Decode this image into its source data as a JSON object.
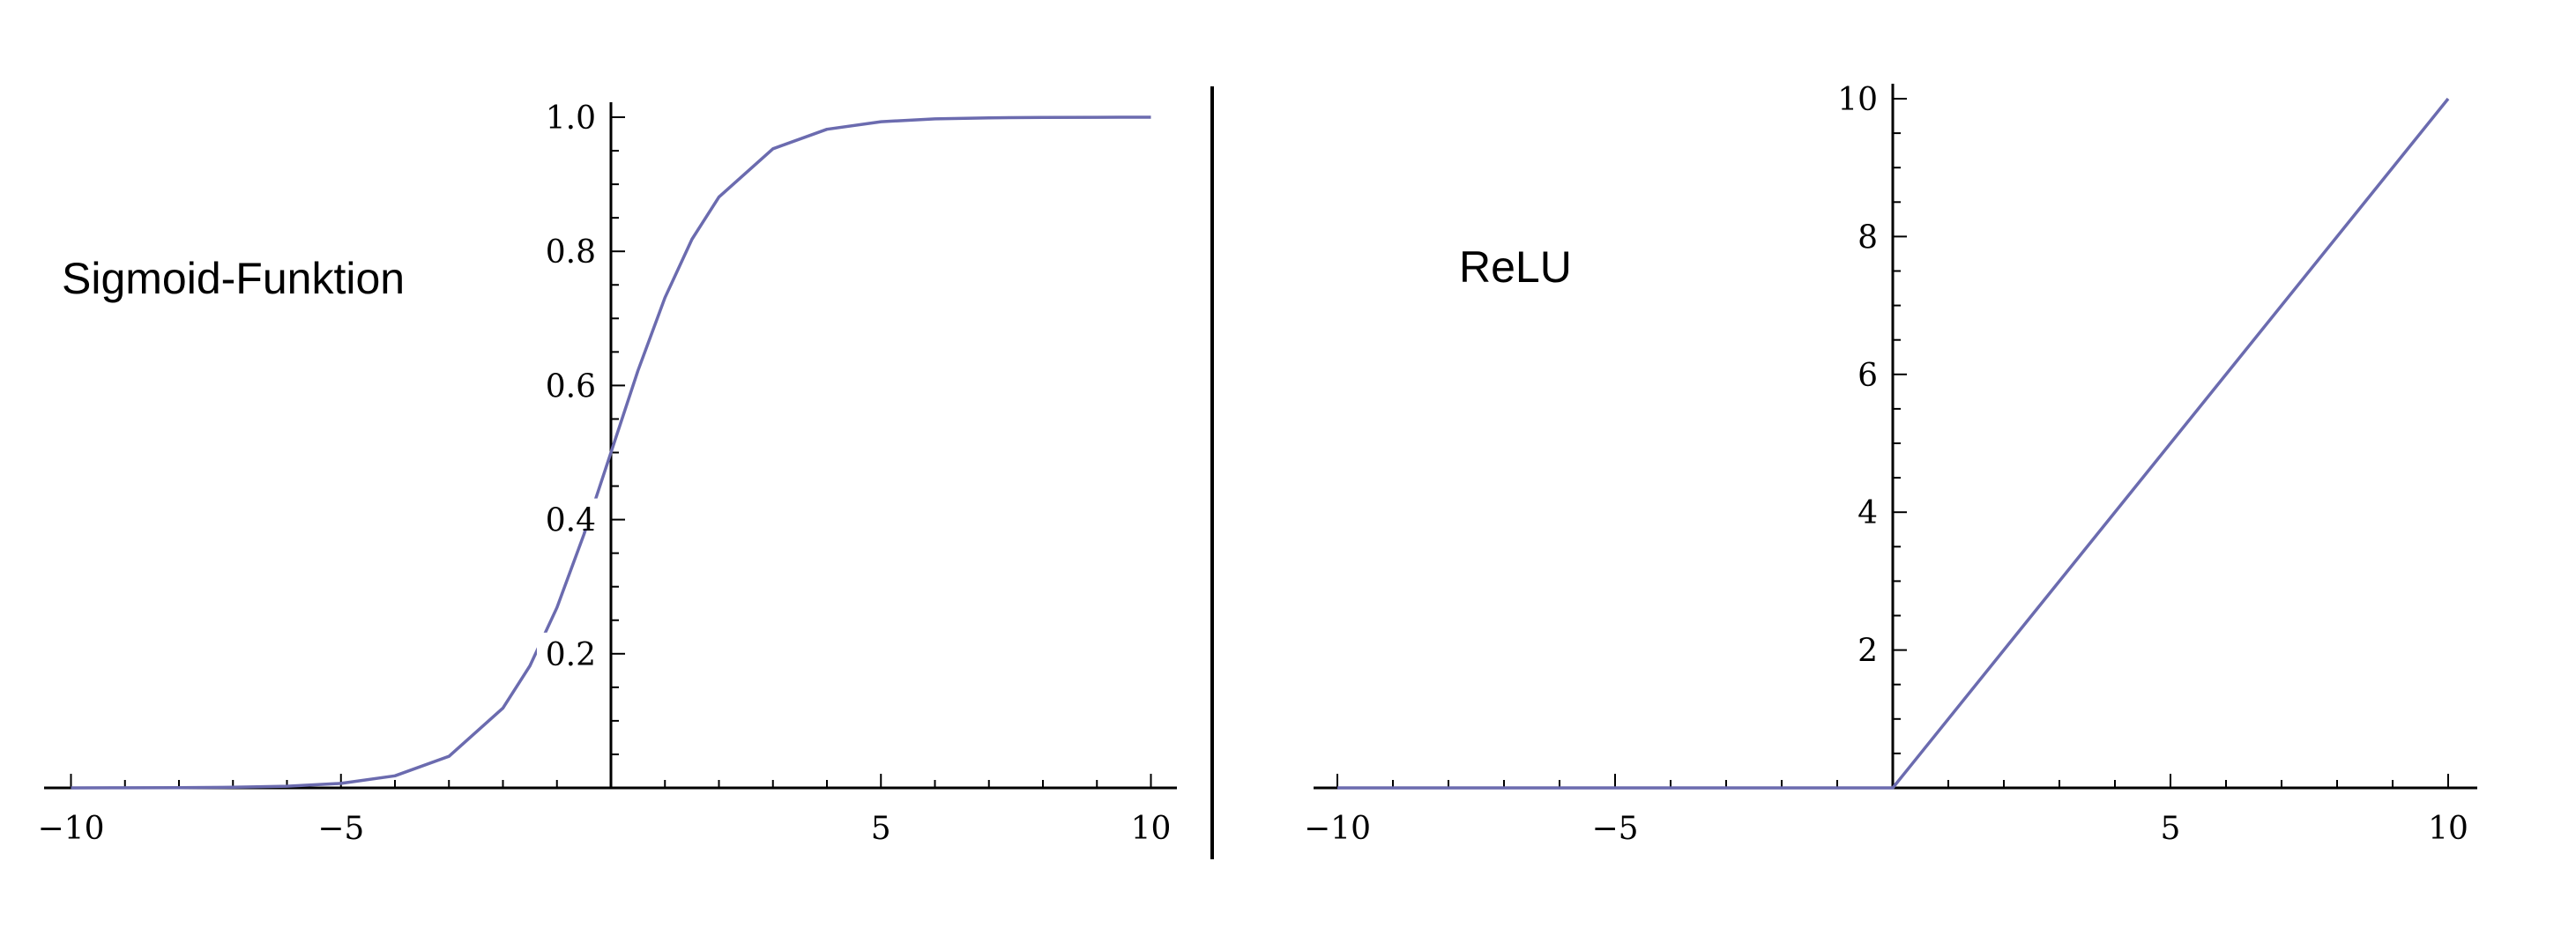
{
  "colors": {
    "curve": "#6b6baf",
    "axis": "#000000",
    "background": "#ffffff"
  },
  "chart_data": [
    {
      "type": "line",
      "title": "Sigmoid-Funktion",
      "xlabel": "",
      "ylabel": "",
      "xlim": [
        -10,
        10
      ],
      "ylim": [
        0,
        1
      ],
      "x_ticks": [
        -10,
        -5,
        5,
        10
      ],
      "x_tick_labels": [
        "−10",
        "−5",
        "5",
        "10"
      ],
      "y_ticks": [
        0.2,
        0.4,
        0.6,
        0.8,
        1.0
      ],
      "y_tick_labels": [
        "0.2",
        "0.4",
        "0.6",
        "0.8",
        "1.0"
      ],
      "grid": false,
      "series": [
        {
          "x": [
            -10,
            -9,
            -8,
            -7,
            -6,
            -5,
            -4,
            -3,
            -2,
            -1.5,
            -1,
            -0.5,
            0,
            0.5,
            1,
            1.5,
            2,
            3,
            4,
            5,
            6,
            7,
            8,
            9,
            10
          ],
          "values": [
            5e-05,
            0.0001,
            0.0003,
            0.0009,
            0.0025,
            0.0067,
            0.018,
            0.047,
            0.119,
            0.182,
            0.269,
            0.378,
            0.5,
            0.622,
            0.731,
            0.818,
            0.881,
            0.953,
            0.982,
            0.9933,
            0.9975,
            0.9991,
            0.9997,
            0.9999,
            0.99995
          ]
        }
      ]
    },
    {
      "type": "line",
      "title": "ReLU",
      "xlabel": "",
      "ylabel": "",
      "xlim": [
        -10,
        10
      ],
      "ylim": [
        0,
        10
      ],
      "x_ticks": [
        -10,
        -5,
        5,
        10
      ],
      "x_tick_labels": [
        "−10",
        "−5",
        "5",
        "10"
      ],
      "y_ticks": [
        2,
        4,
        6,
        8,
        10
      ],
      "y_tick_labels": [
        "2",
        "4",
        "6",
        "8",
        "10"
      ],
      "grid": false,
      "series": [
        {
          "x": [
            -10,
            0,
            10
          ],
          "values": [
            0,
            0,
            10
          ]
        }
      ]
    }
  ]
}
